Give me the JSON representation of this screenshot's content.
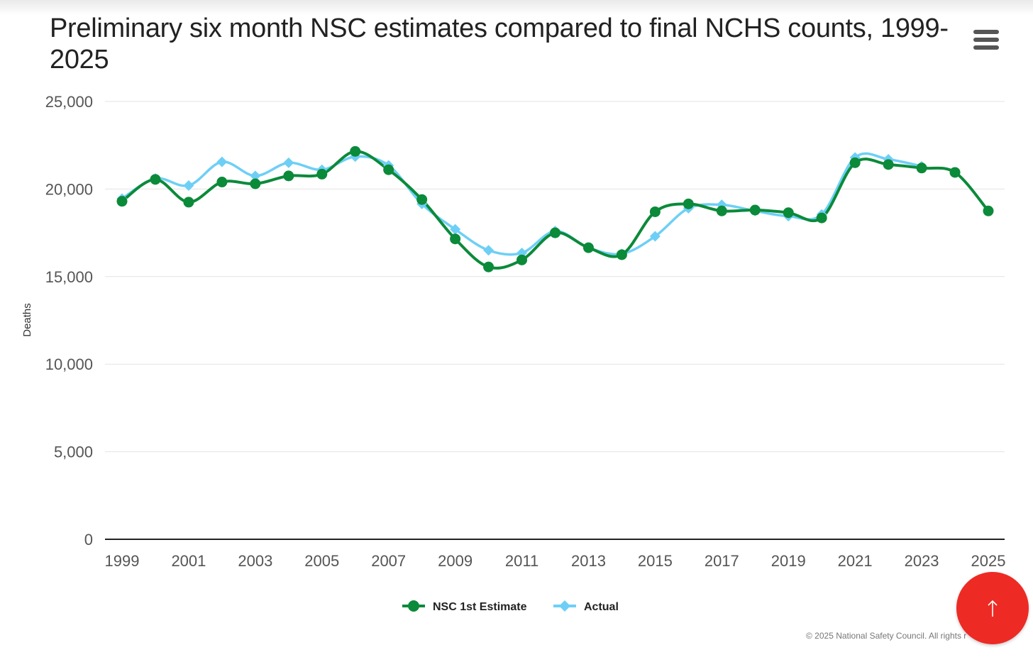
{
  "chart_data": {
    "type": "line",
    "title": "Preliminary six month NSC estimates compared to final NCHS counts, 1999-2025",
    "xlabel": "",
    "ylabel": "Deaths",
    "ylim": [
      0,
      25000
    ],
    "yticks": [
      "0",
      "5,000",
      "10,000",
      "15,000",
      "20,000",
      "25,000"
    ],
    "xticks": [
      "1999",
      "2001",
      "2003",
      "2005",
      "2007",
      "2009",
      "2011",
      "2013",
      "2015",
      "2017",
      "2019",
      "2021",
      "2023",
      "2025"
    ],
    "grid": true,
    "legend_position": "bottom-center",
    "x": [
      1999,
      2000,
      2001,
      2002,
      2003,
      2004,
      2005,
      2006,
      2007,
      2008,
      2009,
      2010,
      2011,
      2012,
      2013,
      2014,
      2015,
      2016,
      2017,
      2018,
      2019,
      2020,
      2021,
      2022,
      2023,
      2024,
      2025
    ],
    "series": [
      {
        "name": "NSC 1st Estimate",
        "color": "#0b8a3a",
        "marker": "circle",
        "values": [
          19300,
          20550,
          19250,
          20400,
          20300,
          20750,
          20850,
          22150,
          21100,
          19400,
          17150,
          15550,
          15950,
          17500,
          16650,
          16250,
          18700,
          19150,
          18750,
          18800,
          18650,
          18350,
          21500,
          21400,
          21200,
          20950,
          18750
        ]
      },
      {
        "name": "Actual",
        "color": "#6ecff6",
        "marker": "diamond",
        "values": [
          19450,
          20600,
          20200,
          21550,
          20750,
          21500,
          21100,
          21850,
          21350,
          19150,
          17700,
          16500,
          16350,
          17600,
          16650,
          16300,
          17300,
          18900,
          19100,
          18750,
          18450,
          18550,
          21800,
          21700,
          21300,
          null,
          null
        ]
      }
    ]
  },
  "menu": {
    "icon": "hamburger-menu-icon"
  },
  "credits": {
    "text": "© 2025 National Safety Council. All rights r"
  },
  "scroll_top": {
    "icon": "arrow-up-icon",
    "color": "#ee2a24"
  }
}
